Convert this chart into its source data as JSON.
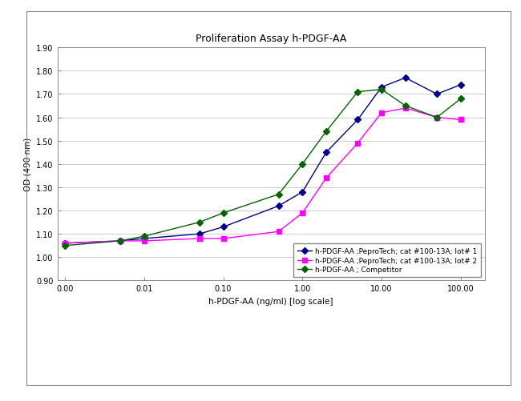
{
  "title": "Proliferation Assay h-PDGF-AA",
  "xlabel": "h-PDGF-AA (ng/ml) [log scale]",
  "ylabel": "OD (490 nm)",
  "ylim": [
    0.9,
    1.9
  ],
  "yticks": [
    0.9,
    1.0,
    1.1,
    1.2,
    1.3,
    1.4,
    1.5,
    1.6,
    1.7,
    1.8,
    1.9
  ],
  "series": [
    {
      "label": "h-PDGF-AA ;PeproTech; cat #100-13A; lot# 1",
      "color": "#00008B",
      "marker": "D",
      "markersize": 4,
      "x": [
        0.001,
        0.005,
        0.01,
        0.05,
        0.1,
        0.5,
        1.0,
        2.0,
        5.0,
        10.0,
        20.0,
        50.0,
        100.0
      ],
      "y": [
        1.06,
        1.07,
        1.08,
        1.1,
        1.13,
        1.22,
        1.28,
        1.45,
        1.59,
        1.73,
        1.77,
        1.7,
        1.74
      ]
    },
    {
      "label": "h-PDGF-AA ;PeproTech; cat #100-13A; lot# 2",
      "color": "#FF00FF",
      "marker": "s",
      "markersize": 4,
      "x": [
        0.001,
        0.005,
        0.01,
        0.05,
        0.1,
        0.5,
        1.0,
        2.0,
        5.0,
        10.0,
        20.0,
        50.0,
        100.0
      ],
      "y": [
        1.06,
        1.07,
        1.07,
        1.08,
        1.08,
        1.11,
        1.19,
        1.34,
        1.49,
        1.62,
        1.64,
        1.6,
        1.59
      ]
    },
    {
      "label": "h-PDGF-AA ; Competitor",
      "color": "#006400",
      "marker": "D",
      "markersize": 4,
      "x": [
        0.001,
        0.005,
        0.01,
        0.05,
        0.1,
        0.5,
        1.0,
        2.0,
        5.0,
        10.0,
        20.0,
        50.0,
        100.0
      ],
      "y": [
        1.05,
        1.07,
        1.09,
        1.15,
        1.19,
        1.27,
        1.4,
        1.54,
        1.71,
        1.72,
        1.65,
        1.6,
        1.68
      ]
    }
  ],
  "legend_fontsize": 6.5,
  "title_fontsize": 9,
  "axis_fontsize": 7.5,
  "tick_fontsize": 7,
  "figure_bg": "#ffffff",
  "plot_bg": "#ffffff",
  "grid_color": "#cccccc",
  "box_color": "#888888",
  "outer_box_color": "#888888"
}
